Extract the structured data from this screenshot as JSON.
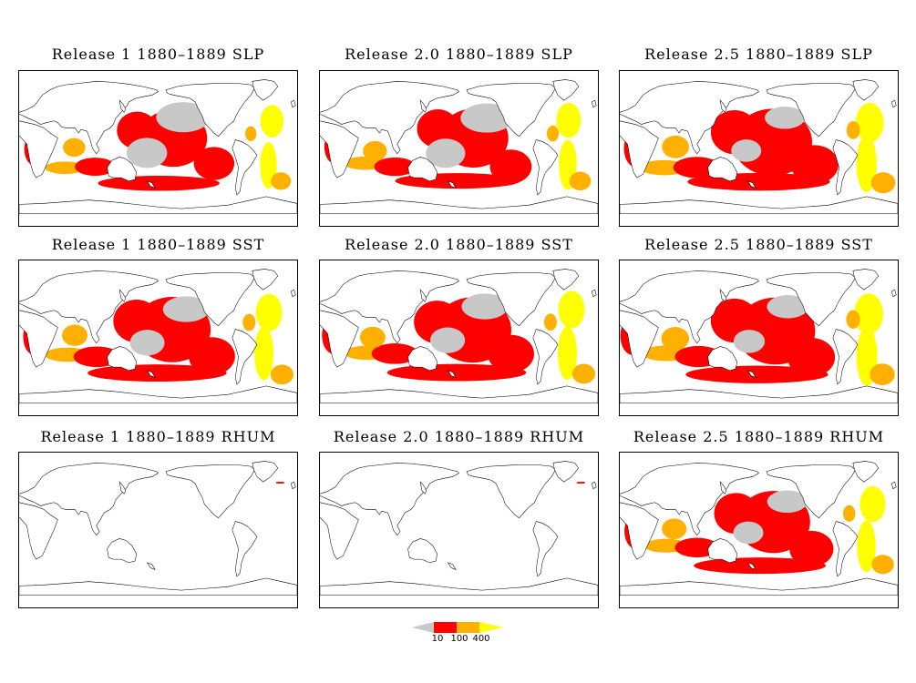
{
  "panels": [
    {
      "title": "Release 1  1880–1889  SLP",
      "release": "1",
      "variable": "SLP",
      "coverage": {
        "gray": 0.55,
        "red": 0.55,
        "orange": 0.25,
        "yellow": 0.15
      }
    },
    {
      "title": "Release 2.0  1880–1889  SLP",
      "release": "2.0",
      "variable": "SLP",
      "coverage": {
        "gray": 0.5,
        "red": 0.6,
        "orange": 0.35,
        "yellow": 0.25
      }
    },
    {
      "title": "Release 2.5  1880–1889  SLP",
      "release": "2.5",
      "variable": "SLP",
      "coverage": {
        "gray": 0.1,
        "red": 0.85,
        "orange": 0.55,
        "yellow": 0.45
      }
    },
    {
      "title": "Release 1  1880–1889  SST",
      "release": "1",
      "variable": "SST",
      "coverage": {
        "gray": 0.3,
        "red": 0.8,
        "orange": 0.45,
        "yellow": 0.35
      }
    },
    {
      "title": "Release 2.0  1880–1889  SST",
      "release": "2.0",
      "variable": "SST",
      "coverage": {
        "gray": 0.3,
        "red": 0.8,
        "orange": 0.45,
        "yellow": 0.35
      }
    },
    {
      "title": "Release 2.5  1880–1889  SST",
      "release": "2.5",
      "variable": "SST",
      "coverage": {
        "gray": 0.15,
        "red": 0.85,
        "orange": 0.6,
        "yellow": 0.5
      }
    },
    {
      "title": "Release 1  1880–1889  RHUM",
      "release": "1",
      "variable": "RHUM",
      "coverage": {
        "gray": 0,
        "red": 0,
        "orange": 0,
        "yellow": 0
      }
    },
    {
      "title": "Release 2.0  1880–1889  RHUM",
      "release": "2.0",
      "variable": "RHUM",
      "coverage": {
        "gray": 0,
        "red": 0,
        "orange": 0,
        "yellow": 0
      }
    },
    {
      "title": "Release 2.5  1880–1889  RHUM",
      "release": "2.5",
      "variable": "RHUM",
      "coverage": {
        "gray": 0.1,
        "red": 0.7,
        "orange": 0.4,
        "yellow": 0.3
      }
    }
  ],
  "legend": {
    "labels": [
      "10",
      "100",
      "400"
    ],
    "colors": [
      "#c8c8c8",
      "#ff0000",
      "#ffb000",
      "#ffff00"
    ]
  }
}
